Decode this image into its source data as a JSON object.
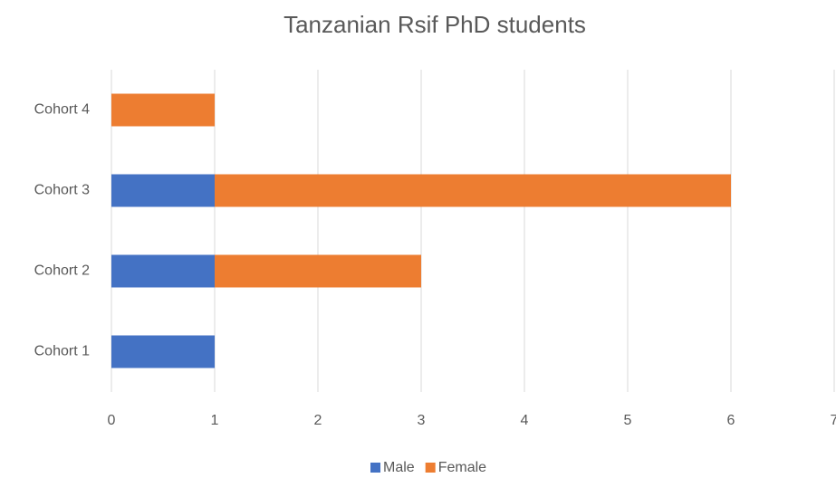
{
  "chart_data": {
    "type": "stacked_bar_horizontal",
    "title": "Tanzanian Rsif PhD students",
    "categories": [
      "Cohort 1",
      "Cohort 2",
      "Cohort 3",
      "Cohort 4"
    ],
    "series": [
      {
        "name": "Male",
        "color": "#4472c4",
        "values": [
          1,
          1,
          1,
          0
        ]
      },
      {
        "name": "Female",
        "color": "#ed7d31",
        "values": [
          0,
          2,
          5,
          1
        ]
      }
    ],
    "xlim": [
      0,
      7
    ],
    "xticks": [
      0,
      1,
      2,
      3,
      4,
      5,
      6,
      7
    ],
    "grid": true,
    "legend": "bottom"
  }
}
